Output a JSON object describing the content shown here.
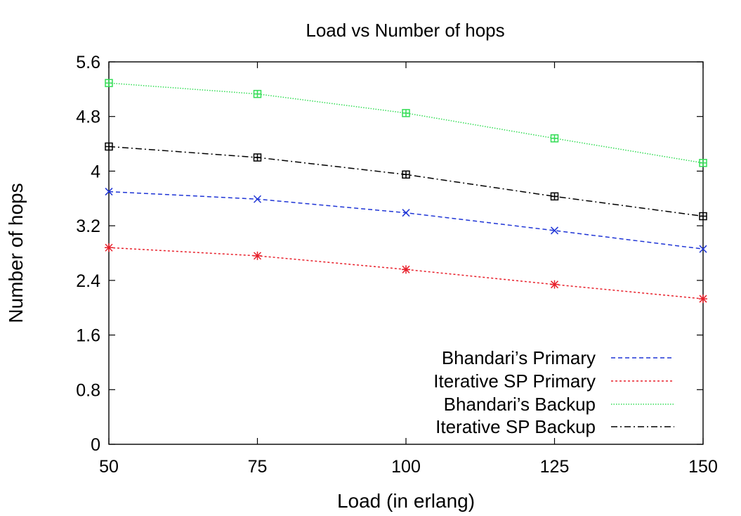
{
  "chart_data": {
    "type": "line",
    "title": "Load vs Number of hops",
    "xlabel": "Load (in erlang)",
    "ylabel": "Number of hops",
    "x": [
      50,
      75,
      100,
      125,
      150
    ],
    "xlim": [
      50,
      150
    ],
    "ylim": [
      0,
      5.6
    ],
    "xticks": [
      "50",
      "75",
      "100",
      "125",
      "150"
    ],
    "yticks": [
      "0",
      "0.8",
      "1.6",
      "2.4",
      "3.2",
      "4",
      "4.8",
      "5.6"
    ],
    "grid": false,
    "legend_position": "bottom-right",
    "series": [
      {
        "name": "Bhandari’s Primary",
        "values": [
          3.7,
          3.59,
          3.39,
          3.13,
          2.86
        ],
        "color": "#1f35d6",
        "dash": "dashed",
        "marker": "x"
      },
      {
        "name": "Iterative SP Primary",
        "values": [
          2.88,
          2.76,
          2.56,
          2.34,
          2.13
        ],
        "color": "#e8202b",
        "dash": "dotted",
        "marker": "asterisk"
      },
      {
        "name": "Bhandari’s Backup",
        "values": [
          5.29,
          5.13,
          4.85,
          4.48,
          4.12
        ],
        "color": "#33dd55",
        "dash": "fine-dotted",
        "marker": "square-plus"
      },
      {
        "name": "Iterative SP Backup",
        "values": [
          4.36,
          4.2,
          3.95,
          3.63,
          3.34
        ],
        "color": "#000000",
        "dash": "dash-dot",
        "marker": "square-plus"
      }
    ]
  }
}
